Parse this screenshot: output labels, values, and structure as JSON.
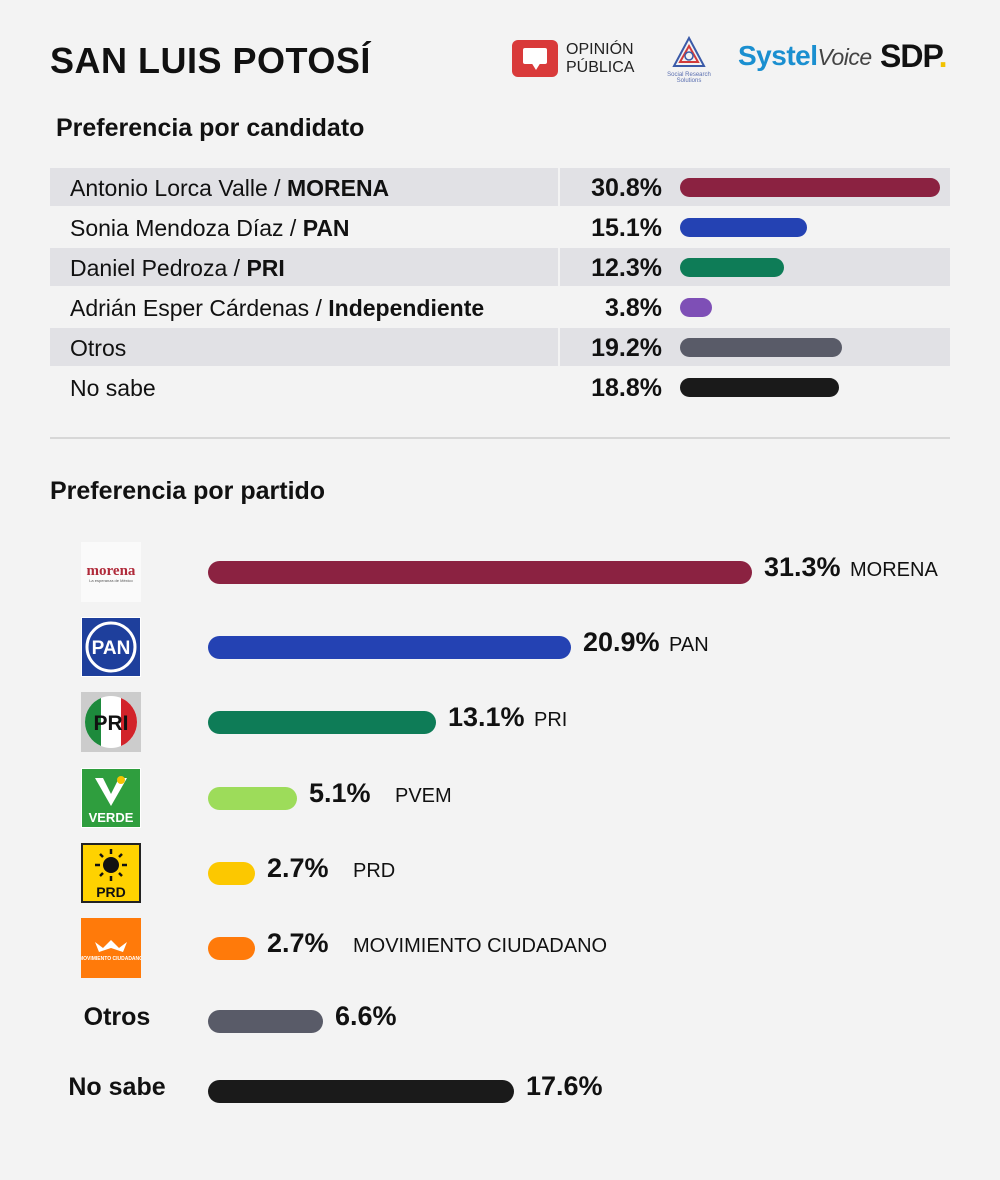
{
  "header": {
    "title": "SAN LUIS POTOSÍ"
  },
  "logos": {
    "opinion_publica": [
      "OPINIÓN",
      "PÚBLICA"
    ],
    "srs_subtitle": "Social Research Solutions",
    "systel": "Systel",
    "systel_voice": "Voice",
    "sdp": "SDP",
    "sdp_dot": "."
  },
  "chart_data": [
    {
      "type": "bar",
      "title": "Preferencia por candidato",
      "categories": [
        "Antonio Lorca Valle",
        "Sonia Mendoza Díaz",
        "Daniel Pedroza",
        "Adrián Esper Cárdenas",
        "Otros",
        "No sabe"
      ],
      "parties": [
        "MORENA",
        "PAN",
        "PRI",
        "Independiente",
        "",
        ""
      ],
      "values": [
        30.8,
        15.1,
        12.3,
        3.8,
        19.2,
        18.8
      ],
      "labels": [
        "30.8%",
        "15.1%",
        "12.3%",
        "3.8%",
        "19.2%",
        "18.8%"
      ],
      "colors": [
        "#8b2241",
        "#2442b3",
        "#0e7c57",
        "#7e4fb6",
        "#595b68",
        "#1a1a1a"
      ],
      "xlim": [
        0,
        30.8
      ]
    },
    {
      "type": "bar",
      "title": "Preferencia por partido",
      "categories": [
        "MORENA",
        "PAN",
        "PRI",
        "PVEM",
        "PRD",
        "MOVIMIENTO CIUDADANO",
        "Otros",
        "No sabe"
      ],
      "values": [
        31.3,
        20.9,
        13.1,
        5.1,
        2.7,
        2.7,
        6.6,
        17.6
      ],
      "labels": [
        "31.3%",
        "20.9%",
        "13.1%",
        "5.1%",
        "2.7%",
        "2.7%",
        "6.6%",
        "17.6%"
      ],
      "colors": [
        "#8b2241",
        "#2442b3",
        "#0e7c57",
        "#9ddc5a",
        "#fcc800",
        "#ff7a0a",
        "#595b68",
        "#1a1a1a"
      ],
      "logo_icons": [
        "morena-logo",
        "pan-logo",
        "pri-logo",
        "verde-logo",
        "prd-logo",
        "movimiento-ciudadano-logo",
        "",
        ""
      ],
      "logo_texts": [
        "morena",
        "PAN",
        "PRI",
        "VERDE",
        "PRD",
        "MOVIMIENTO CIUDADANO",
        "Otros",
        "No sabe"
      ],
      "morena_slogan": "La esperanza de México",
      "xlim": [
        0,
        31.3
      ]
    }
  ]
}
